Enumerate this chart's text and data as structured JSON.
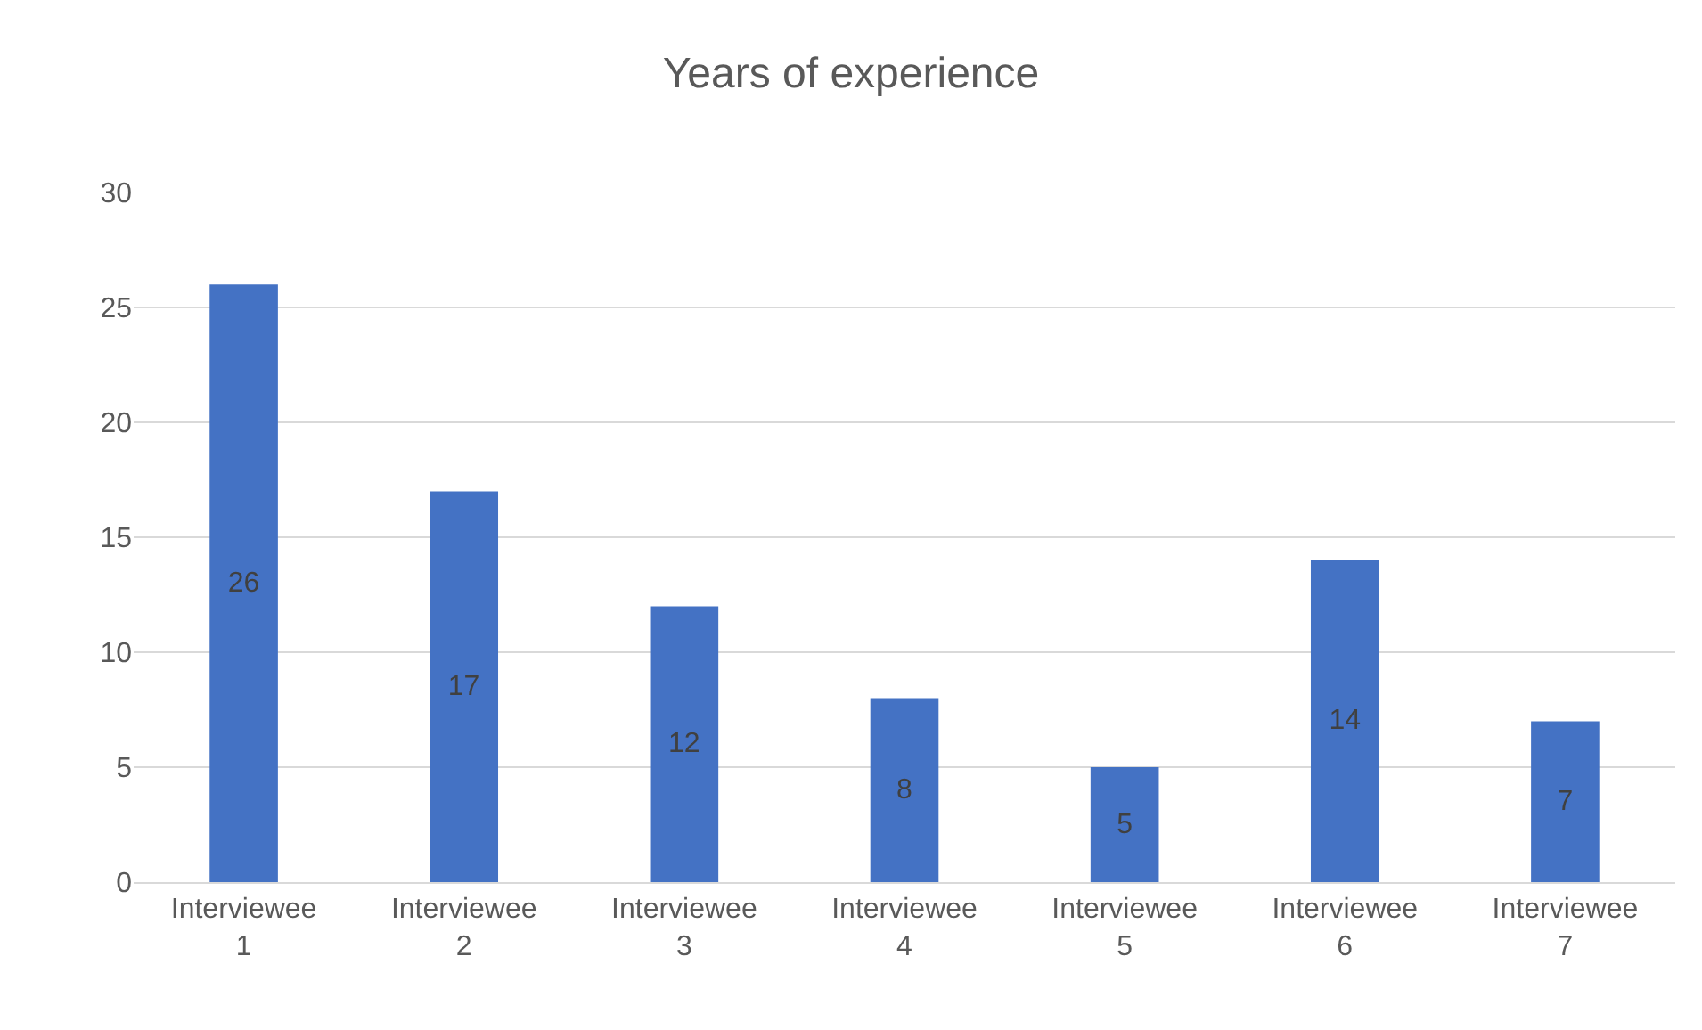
{
  "chart_data": {
    "type": "bar",
    "title": "Years of experience",
    "categories": [
      "Interviewee 1",
      "Interviewee 2",
      "Interviewee 3",
      "Interviewee 4",
      "Interviewee 5",
      "Interviewee 6",
      "Interviewee 7"
    ],
    "values": [
      26,
      17,
      12,
      8,
      5,
      14,
      7
    ],
    "color": "#4472c4",
    "ylim": [
      0,
      30
    ],
    "yticks": [
      0,
      5,
      10,
      15,
      20,
      25,
      30
    ],
    "grid": "y",
    "data_labels": true
  }
}
